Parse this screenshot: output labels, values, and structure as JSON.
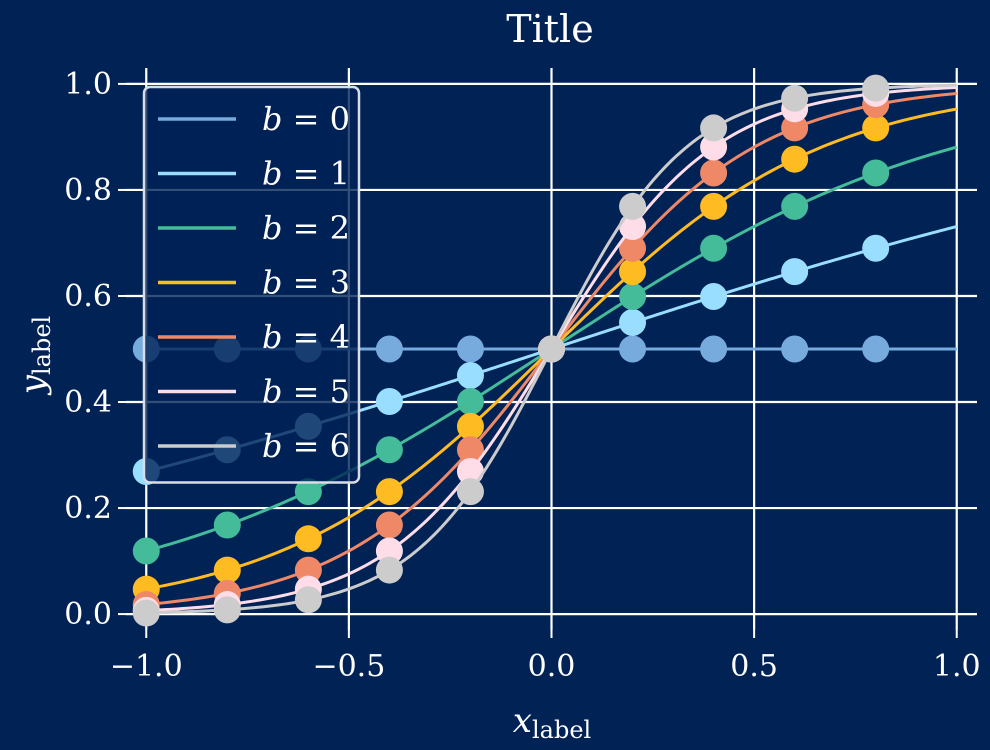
{
  "chart_data": {
    "type": "line",
    "title": "Title",
    "xlabel": {
      "main": "x",
      "sub": "label"
    },
    "ylabel": {
      "main": "y",
      "sub": "label"
    },
    "xlim": [
      -1.05,
      1.05
    ],
    "ylim": [
      -0.03,
      1.03
    ],
    "xticks": [
      -1.0,
      -0.5,
      0.0,
      0.5,
      1.0
    ],
    "xtick_labels": [
      "−1.0",
      "−0.5",
      "0.0",
      "0.5",
      "1.0"
    ],
    "yticks": [
      0.0,
      0.2,
      0.4,
      0.6,
      0.8,
      1.0
    ],
    "ytick_labels": [
      "0.0",
      "0.2",
      "0.4",
      "0.6",
      "0.8",
      "1.0"
    ],
    "grid": true,
    "legend_position": "upper-left",
    "background_color": "#002255",
    "marker_x": [
      -1.0,
      -0.8,
      -0.6,
      -0.4,
      -0.2,
      0.0,
      0.2,
      0.4,
      0.6,
      0.8
    ],
    "series": [
      {
        "name": "b = 0",
        "legend_var": "b",
        "legend_val": "= 0",
        "b": 0,
        "color": "#77aadd",
        "markers": [
          0.5,
          0.5,
          0.5,
          0.5,
          0.5,
          0.5,
          0.5,
          0.5,
          0.5,
          0.5
        ]
      },
      {
        "name": "b = 1",
        "legend_var": "b",
        "legend_val": "= 1",
        "b": 1,
        "color": "#99ddff",
        "markers": [
          0.269,
          0.31,
          0.354,
          0.401,
          0.45,
          0.5,
          0.55,
          0.599,
          0.646,
          0.69
        ]
      },
      {
        "name": "b = 2",
        "legend_var": "b",
        "legend_val": "= 2",
        "b": 2,
        "color": "#44bb99",
        "markers": [
          0.119,
          0.168,
          0.231,
          0.31,
          0.401,
          0.5,
          0.599,
          0.69,
          0.769,
          0.832
        ]
      },
      {
        "name": "b = 3",
        "legend_var": "b",
        "legend_val": "= 3",
        "b": 3,
        "color": "#ffbb22",
        "markers": [
          0.047,
          0.083,
          0.142,
          0.231,
          0.354,
          0.5,
          0.646,
          0.769,
          0.858,
          0.917
        ]
      },
      {
        "name": "b = 4",
        "legend_var": "b",
        "legend_val": "= 4",
        "b": 4,
        "color": "#ee8866",
        "markers": [
          0.018,
          0.039,
          0.083,
          0.168,
          0.31,
          0.5,
          0.69,
          0.832,
          0.917,
          0.961
        ]
      },
      {
        "name": "b = 5",
        "legend_var": "b",
        "legend_val": "= 5",
        "b": 5,
        "color": "#ffdde8",
        "markers": [
          0.007,
          0.018,
          0.047,
          0.119,
          0.269,
          0.5,
          0.731,
          0.881,
          0.953,
          0.982
        ]
      },
      {
        "name": "b = 6",
        "legend_var": "b",
        "legend_val": "= 6",
        "b": 6,
        "color": "#cccccc",
        "markers": [
          0.002,
          0.008,
          0.027,
          0.083,
          0.231,
          0.5,
          0.769,
          0.917,
          0.973,
          0.992
        ]
      }
    ]
  }
}
